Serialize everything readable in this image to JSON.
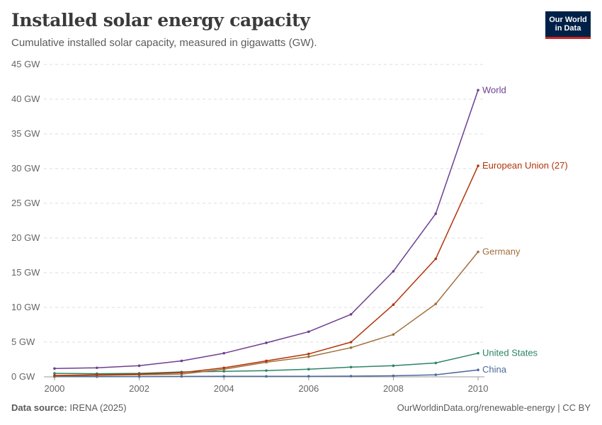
{
  "header": {
    "title": "Installed solar energy capacity",
    "subtitle": "Cumulative installed solar capacity, measured in gigawatts (GW).",
    "logo_line1": "Our World",
    "logo_line2": "in Data"
  },
  "footer": {
    "source_label": "Data source:",
    "source_value": "IRENA (2025)",
    "url": "OurWorldinData.org/renewable-energy | CC BY"
  },
  "chart_data": {
    "type": "line",
    "title": "Installed solar energy capacity",
    "subtitle": "Cumulative installed solar capacity, measured in gigawatts (GW).",
    "xlabel": "",
    "ylabel": "",
    "x": [
      2000,
      2001,
      2002,
      2003,
      2004,
      2005,
      2006,
      2007,
      2008,
      2009,
      2010
    ],
    "xticks": [
      2000,
      2002,
      2004,
      2006,
      2008,
      2010
    ],
    "xtick_labels": [
      "2000",
      "2002",
      "2004",
      "2006",
      "2008",
      "2010"
    ],
    "yticks": [
      0,
      5,
      10,
      15,
      20,
      25,
      30,
      35,
      40,
      45
    ],
    "ytick_labels": [
      "0 GW",
      "5 GW",
      "10 GW",
      "15 GW",
      "20 GW",
      "25 GW",
      "30 GW",
      "35 GW",
      "40 GW",
      "45 GW"
    ],
    "xlim": [
      1999.75,
      2010.15
    ],
    "ylim": [
      0,
      45
    ],
    "grid": "horizontal dashed",
    "legend": "labels at line ends (right)",
    "series": [
      {
        "name": "World",
        "color": "#6d3e91",
        "values": [
          1.2,
          1.3,
          1.6,
          2.3,
          3.4,
          4.9,
          6.5,
          9.0,
          15.2,
          23.5,
          41.3
        ]
      },
      {
        "name": "European Union (27)",
        "color": "#b13507",
        "values": [
          0.2,
          0.3,
          0.4,
          0.6,
          1.3,
          2.3,
          3.3,
          5.0,
          10.4,
          17.0,
          30.4
        ]
      },
      {
        "name": "Germany",
        "color": "#a2703d",
        "values": [
          0.1,
          0.2,
          0.3,
          0.4,
          1.1,
          2.1,
          2.9,
          4.2,
          6.1,
          10.5,
          18.0
        ]
      },
      {
        "name": "United States",
        "color": "#2c8465",
        "values": [
          0.5,
          0.45,
          0.5,
          0.7,
          0.8,
          0.9,
          1.1,
          1.4,
          1.6,
          2.0,
          3.4
        ]
      },
      {
        "name": "China",
        "color": "#4c6a9c",
        "values": [
          0.02,
          0.03,
          0.04,
          0.06,
          0.07,
          0.07,
          0.08,
          0.1,
          0.15,
          0.3,
          1.0
        ]
      }
    ]
  }
}
